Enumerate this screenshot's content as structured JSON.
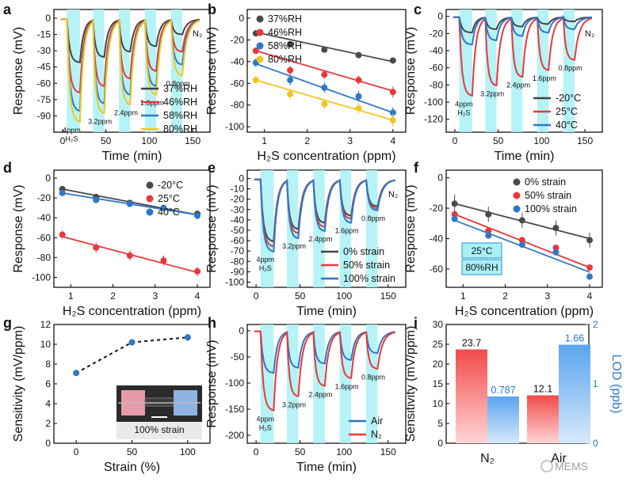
{
  "watermark": "MEMS",
  "colors": {
    "black": "#444444",
    "red": "#e8383c",
    "blue": "#2e77c8",
    "yellow": "#f3c521",
    "gray": "#4a4a4a",
    "cyan": "#a9f1f5"
  },
  "chart_data": [
    {
      "panel": "a",
      "type": "line",
      "xlabel": "Time (min)",
      "ylabel": "Response (mV)",
      "xlim": [
        -10,
        170
      ],
      "ylim": [
        -105,
        8
      ],
      "xticks": [
        0,
        50,
        100,
        150
      ],
      "yticks": [
        0,
        -15,
        -30,
        -45,
        -60,
        -75,
        -90
      ],
      "gas_label": "N₂",
      "conc_labels": [
        "4ppm H₂S",
        "3.2ppm",
        "2.4ppm",
        "1.6ppm",
        "0.8ppm"
      ],
      "pulses": [
        [
          5,
          20
        ],
        [
          35,
          48
        ],
        [
          65,
          78
        ],
        [
          95,
          108
        ],
        [
          125,
          138
        ]
      ],
      "series": [
        {
          "name": "37%RH",
          "color": "black",
          "depths": [
            -40,
            -35,
            -30,
            -25,
            -14
          ]
        },
        {
          "name": "46%RH",
          "color": "red",
          "depths": [
            -68,
            -62,
            -55,
            -48,
            -30
          ]
        },
        {
          "name": "58%RH",
          "color": "blue",
          "depths": [
            -85,
            -78,
            -70,
            -62,
            -42
          ]
        },
        {
          "name": "80%RH",
          "color": "yellow",
          "depths": [
            -95,
            -87,
            -79,
            -70,
            -52
          ]
        }
      ]
    },
    {
      "panel": "b",
      "type": "scatter",
      "xlabel": "H₂S concentration (ppm)",
      "ylabel": "Response (mV)",
      "xlim": [
        0.6,
        4.3
      ],
      "ylim": [
        -105,
        8
      ],
      "xticks": [
        1,
        2,
        3,
        4
      ],
      "yticks": [
        0,
        -20,
        -40,
        -60,
        -80,
        -100
      ],
      "x": [
        0.8,
        1.6,
        2.4,
        3.2,
        4.0
      ],
      "series": [
        {
          "name": "37%RH",
          "color": "gray",
          "values": [
            -14,
            -24,
            -29,
            -34,
            -39
          ],
          "err": [
            1,
            1.5,
            2,
            1.5,
            2
          ],
          "fit": [
            -13,
            -40
          ]
        },
        {
          "name": "46%RH",
          "color": "red",
          "values": [
            -30,
            -48,
            -52,
            -57,
            -68
          ],
          "err": [
            3,
            4,
            4,
            4,
            5
          ],
          "fit": [
            -30,
            -67
          ]
        },
        {
          "name": "58%RH",
          "color": "blue",
          "values": [
            -41,
            -57,
            -64,
            -72,
            -87
          ],
          "err": [
            4,
            5,
            5,
            5,
            5
          ],
          "fit": [
            -42,
            -87
          ]
        },
        {
          "name": "80%RH",
          "color": "yellow",
          "values": [
            -57,
            -70,
            -79,
            -83,
            -94
          ],
          "err": [
            4,
            5,
            5,
            5,
            6
          ],
          "fit": [
            -57,
            -94
          ]
        }
      ]
    },
    {
      "panel": "c",
      "type": "line",
      "xlabel": "Time (min)",
      "ylabel": "Response (mV)",
      "xlim": [
        -10,
        170
      ],
      "ylim": [
        -135,
        8
      ],
      "xticks": [
        0,
        50,
        100,
        150
      ],
      "yticks": [
        0,
        -20,
        -40,
        -60,
        -80,
        -100,
        -120
      ],
      "gas_label": "N₂",
      "conc_labels": [
        "4ppm H₂S",
        "3.2ppm",
        "2.4ppm",
        "1.6ppm",
        "0.8ppm"
      ],
      "pulses": [
        [
          5,
          20
        ],
        [
          35,
          48
        ],
        [
          65,
          78
        ],
        [
          95,
          108
        ],
        [
          125,
          138
        ]
      ],
      "series": [
        {
          "name": "-20°C",
          "color": "black",
          "depths": [
            -18,
            -14,
            -11,
            -8,
            -5
          ]
        },
        {
          "name": "25°C",
          "color": "red",
          "depths": [
            -92,
            -80,
            -70,
            -62,
            -50
          ]
        },
        {
          "name": "40°C",
          "color": "blue",
          "depths": [
            -32,
            -27,
            -22,
            -18,
            -14
          ]
        }
      ]
    },
    {
      "panel": "d",
      "type": "scatter",
      "xlabel": "H₂S concentration (ppm)",
      "ylabel": "Response (mV)",
      "xlim": [
        0.6,
        4.3
      ],
      "ylim": [
        -110,
        8
      ],
      "xticks": [
        1,
        2,
        3,
        4
      ],
      "yticks": [
        0,
        -20,
        -40,
        -60,
        -80,
        -100
      ],
      "x": [
        0.8,
        1.6,
        2.4,
        3.2,
        4.0
      ],
      "series": [
        {
          "name": "-20°C",
          "color": "gray",
          "values": [
            -11,
            -19,
            -25,
            -30,
            -36
          ],
          "err": [
            1,
            1,
            1,
            1,
            1
          ],
          "fit": [
            -11,
            -37
          ]
        },
        {
          "name": "25°C",
          "color": "red",
          "values": [
            -57,
            -70,
            -78,
            -83,
            -94
          ],
          "err": [
            4,
            5,
            5,
            5,
            5
          ],
          "fit": [
            -59,
            -95
          ]
        },
        {
          "name": "40°C",
          "color": "blue",
          "values": [
            -15,
            -22,
            -26,
            -30,
            -38
          ],
          "err": [
            1,
            1,
            1,
            1,
            1
          ],
          "fit": [
            -15,
            -37
          ]
        }
      ]
    },
    {
      "panel": "e",
      "type": "line",
      "xlabel": "Time (min)",
      "ylabel": "Response (mV)",
      "xlim": [
        -10,
        170
      ],
      "ylim": [
        -105,
        8
      ],
      "xticks": [
        0,
        50,
        100,
        150
      ],
      "yticks": [
        0,
        -10,
        -20,
        -30,
        -40,
        -50,
        -60,
        -70,
        -80,
        -90,
        -100
      ],
      "gas_label": "N₂",
      "conc_labels": [
        "4ppm H₂S",
        "3.2ppm",
        "2.4ppm",
        "1.6ppm",
        "0.8ppm"
      ],
      "pulses": [
        [
          5,
          20
        ],
        [
          35,
          48
        ],
        [
          65,
          78
        ],
        [
          95,
          108
        ],
        [
          125,
          138
        ]
      ],
      "series": [
        {
          "name": "0% strain",
          "color": "black",
          "depths": [
            -60,
            -48,
            -42,
            -35,
            -26
          ]
        },
        {
          "name": "50% strain",
          "color": "red",
          "depths": [
            -65,
            -52,
            -46,
            -38,
            -28
          ]
        },
        {
          "name": "100% strain",
          "color": "blue",
          "depths": [
            -70,
            -57,
            -50,
            -42,
            -30
          ]
        }
      ]
    },
    {
      "panel": "f",
      "type": "scatter",
      "xlabel": "H₂S concentration (ppm)",
      "ylabel": "Response (mV)",
      "xlim": [
        0.6,
        4.3
      ],
      "ylim": [
        -72,
        5
      ],
      "xticks": [
        1,
        2,
        3,
        4
      ],
      "yticks": [
        0,
        -20,
        -40,
        -60
      ],
      "x": [
        0.8,
        1.6,
        2.4,
        3.2,
        4.0
      ],
      "annotation": [
        "25°C",
        "80%RH"
      ],
      "series": [
        {
          "name": "0% strain",
          "color": "gray",
          "values": [
            -17,
            -24,
            -28,
            -33,
            -41
          ],
          "err": [
            6,
            5,
            5,
            5,
            5
          ],
          "fit": [
            -17,
            -40
          ]
        },
        {
          "name": "50% strain",
          "color": "red",
          "values": [
            -24,
            -35,
            -41,
            -46,
            -59
          ],
          "err": [
            2,
            2,
            2,
            2,
            2
          ],
          "fit": [
            -24,
            -59
          ]
        },
        {
          "name": "100% strain",
          "color": "blue",
          "values": [
            -27,
            -38,
            -44,
            -49,
            -65
          ],
          "err": [
            2,
            2,
            2,
            2,
            2
          ],
          "fit": [
            -28,
            -62
          ]
        }
      ]
    },
    {
      "panel": "g",
      "type": "scatter",
      "xlabel": "Strain (%)",
      "ylabel": "Sensitivity (mV/ppm)",
      "xlim": [
        -20,
        120
      ],
      "ylim": [
        0,
        12
      ],
      "xticks": [
        0,
        50,
        100
      ],
      "yticks": [
        0,
        2,
        4,
        6,
        8,
        10,
        12
      ],
      "x": [
        0,
        50,
        100
      ],
      "values": [
        7.1,
        10.2,
        10.7
      ],
      "err": [
        0.2,
        0.3,
        0.35
      ],
      "inset_label": "100% strain"
    },
    {
      "panel": "h",
      "type": "line",
      "xlabel": "Time (min)",
      "ylabel": "Response (mV)",
      "xlim": [
        -10,
        170
      ],
      "ylim": [
        -215,
        12
      ],
      "xticks": [
        0,
        50,
        100,
        150
      ],
      "yticks": [
        0,
        -50,
        -100,
        -150,
        -200
      ],
      "conc_labels": [
        "4ppm H₂S",
        "3.2ppm",
        "2.4ppm",
        "1.6ppm",
        "0.8ppm"
      ],
      "pulses": [
        [
          5,
          20
        ],
        [
          35,
          48
        ],
        [
          65,
          78
        ],
        [
          95,
          108
        ],
        [
          125,
          138
        ]
      ],
      "series": [
        {
          "name": "Air",
          "color": "blue",
          "depths": [
            -80,
            -70,
            -62,
            -55,
            -42
          ]
        },
        {
          "name": "N₂",
          "color": "red",
          "depths": [
            -152,
            -125,
            -105,
            -90,
            -72
          ]
        }
      ]
    },
    {
      "panel": "i",
      "type": "bar",
      "categories": [
        "N₂",
        "Air"
      ],
      "ylabel": "Sensitivity (mV/ppm)",
      "y2label": "LOD (ppb)",
      "ylim": [
        0,
        30
      ],
      "y2lim": [
        0,
        2
      ],
      "yticks": [
        0,
        5,
        10,
        15,
        20,
        25,
        30
      ],
      "y2ticks": [
        0,
        1,
        2
      ],
      "series": [
        {
          "name": "Sensitivity",
          "axis": "left",
          "color": "red",
          "values": [
            23.7,
            12.1
          ],
          "labels": [
            "23.7",
            "12.1"
          ]
        },
        {
          "name": "LOD",
          "axis": "right",
          "color": "blue",
          "values": [
            0.787,
            1.66
          ],
          "labels": [
            "0.787",
            "1.66"
          ]
        }
      ]
    }
  ]
}
